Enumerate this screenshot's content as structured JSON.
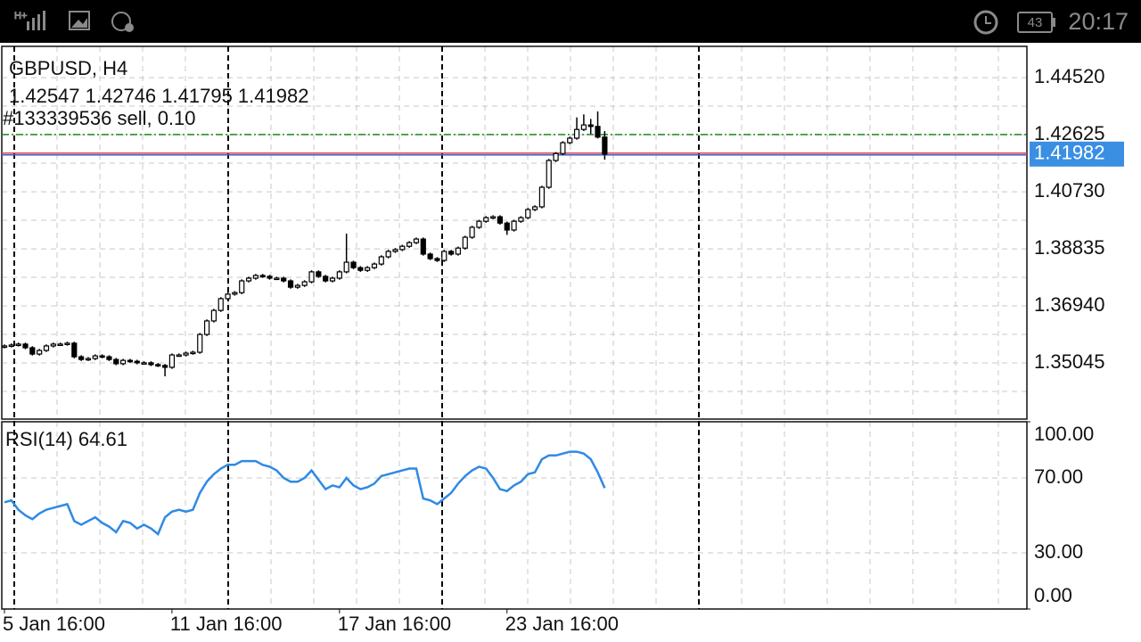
{
  "status_bar": {
    "battery": "43",
    "time": "20:17"
  },
  "chart_data": {
    "type": "candlestick",
    "symbol_label": "GBPUSD, H4",
    "ohlc_label": "1.42547 1.42746 1.41795 1.41982",
    "order_label": "#133339536 sell, 0.10",
    "categories": [
      "5 Jan 16:00",
      null,
      null,
      null,
      null,
      null,
      null,
      null,
      null,
      null,
      null,
      null,
      null,
      null,
      null,
      null,
      null,
      null,
      null,
      null,
      null,
      null,
      null,
      null,
      "11 Jan 16:00",
      null,
      null,
      null,
      null,
      null,
      null,
      null,
      null,
      null,
      null,
      null,
      null,
      null,
      null,
      null,
      null,
      null,
      null,
      null,
      null,
      null,
      null,
      null,
      "17 Jan 16:00",
      null,
      null,
      null,
      null,
      null,
      null,
      null,
      null,
      null,
      null,
      null,
      null,
      null,
      null,
      null,
      null,
      null,
      null,
      null,
      null,
      null,
      null,
      null,
      "23 Jan 16:00",
      null,
      null,
      null,
      null,
      null,
      null,
      null,
      null,
      null,
      null,
      null,
      null,
      null,
      null
    ],
    "ohlc": [
      [
        1.3558,
        1.3566,
        1.3553,
        1.3561
      ],
      [
        1.3561,
        1.3569,
        1.3556,
        1.3564
      ],
      [
        1.3564,
        1.3572,
        1.3559,
        1.3567
      ],
      [
        1.3567,
        1.3572,
        1.355,
        1.3555
      ],
      [
        1.3555,
        1.356,
        1.3529,
        1.3534
      ],
      [
        1.3534,
        1.3551,
        1.3529,
        1.3546
      ],
      [
        1.3546,
        1.3566,
        1.3541,
        1.3561
      ],
      [
        1.3561,
        1.3572,
        1.3556,
        1.3567
      ],
      [
        1.3567,
        1.3572,
        1.3562,
        1.3567
      ],
      [
        1.3567,
        1.3575,
        1.3562,
        1.357
      ],
      [
        1.357,
        1.3575,
        1.352,
        1.3525
      ],
      [
        1.3525,
        1.353,
        1.3511,
        1.3516
      ],
      [
        1.3516,
        1.3524,
        1.3511,
        1.3519
      ],
      [
        1.3519,
        1.3533,
        1.3514,
        1.3528
      ],
      [
        1.3528,
        1.3533,
        1.352,
        1.3525
      ],
      [
        1.3525,
        1.353,
        1.3511,
        1.3516
      ],
      [
        1.3516,
        1.3521,
        1.3497,
        1.3502
      ],
      [
        1.3502,
        1.3518,
        1.3497,
        1.3513
      ],
      [
        1.3513,
        1.3518,
        1.3505,
        1.351
      ],
      [
        1.351,
        1.3515,
        1.35,
        1.3505
      ],
      [
        1.3505,
        1.351,
        1.35,
        1.3505
      ],
      [
        1.3505,
        1.351,
        1.3494,
        1.3499
      ],
      [
        1.3499,
        1.3504,
        1.3491,
        1.3496
      ],
      [
        1.3496,
        1.3501,
        1.346,
        1.349
      ],
      [
        1.349,
        1.3536,
        1.3485,
        1.3531
      ],
      [
        1.3531,
        1.3536,
        1.3526,
        1.3531
      ],
      [
        1.3531,
        1.3542,
        1.3526,
        1.3537
      ],
      [
        1.3537,
        1.3545,
        1.3532,
        1.354
      ],
      [
        1.354,
        1.3604,
        1.3535,
        1.3599
      ],
      [
        1.3599,
        1.3649,
        1.3594,
        1.3644
      ],
      [
        1.3644,
        1.3684,
        1.3639,
        1.3679
      ],
      [
        1.3679,
        1.3723,
        1.3674,
        1.3718
      ],
      [
        1.3718,
        1.3738,
        1.3713,
        1.3733
      ],
      [
        1.3733,
        1.3743,
        1.3728,
        1.3738
      ],
      [
        1.3738,
        1.3782,
        1.3733,
        1.3777
      ],
      [
        1.3777,
        1.3791,
        1.3772,
        1.3786
      ],
      [
        1.3786,
        1.38,
        1.3781,
        1.3795
      ],
      [
        1.3795,
        1.38,
        1.3787,
        1.3792
      ],
      [
        1.3792,
        1.3797,
        1.3781,
        1.3786
      ],
      [
        1.3786,
        1.3791,
        1.3781,
        1.3786
      ],
      [
        1.3786,
        1.3791,
        1.3772,
        1.3777
      ],
      [
        1.3777,
        1.3782,
        1.3751,
        1.3756
      ],
      [
        1.3756,
        1.3767,
        1.3751,
        1.3762
      ],
      [
        1.3762,
        1.3779,
        1.3757,
        1.3774
      ],
      [
        1.3774,
        1.3812,
        1.3769,
        1.3807
      ],
      [
        1.3807,
        1.3812,
        1.3787,
        1.3792
      ],
      [
        1.3792,
        1.3797,
        1.3772,
        1.3777
      ],
      [
        1.3777,
        1.3791,
        1.3772,
        1.3786
      ],
      [
        1.3786,
        1.3812,
        1.3781,
        1.3807
      ],
      [
        1.3807,
        1.3934,
        1.3802,
        1.3839
      ],
      [
        1.3839,
        1.3844,
        1.3816,
        1.3821
      ],
      [
        1.3821,
        1.3826,
        1.3807,
        1.3812
      ],
      [
        1.3812,
        1.3826,
        1.3807,
        1.3821
      ],
      [
        1.3821,
        1.3838,
        1.3816,
        1.3833
      ],
      [
        1.3833,
        1.3862,
        1.3828,
        1.3857
      ],
      [
        1.3857,
        1.388,
        1.3852,
        1.3875
      ],
      [
        1.3875,
        1.3886,
        1.387,
        1.3881
      ],
      [
        1.3881,
        1.3897,
        1.3876,
        1.3892
      ],
      [
        1.3892,
        1.3909,
        1.3887,
        1.3904
      ],
      [
        1.3904,
        1.3921,
        1.3899,
        1.3916
      ],
      [
        1.3916,
        1.3921,
        1.3861,
        1.3866
      ],
      [
        1.3866,
        1.3871,
        1.3846,
        1.3851
      ],
      [
        1.3851,
        1.3856,
        1.384,
        1.3845
      ],
      [
        1.3845,
        1.388,
        1.384,
        1.3875
      ],
      [
        1.3875,
        1.388,
        1.3861,
        1.3866
      ],
      [
        1.3866,
        1.3891,
        1.3861,
        1.3886
      ],
      [
        1.3886,
        1.3927,
        1.3881,
        1.3922
      ],
      [
        1.3922,
        1.396,
        1.3917,
        1.3955
      ],
      [
        1.3955,
        1.398,
        1.395,
        1.3975
      ],
      [
        1.3975,
        1.3992,
        1.397,
        1.3987
      ],
      [
        1.3987,
        1.3995,
        1.3982,
        1.399
      ],
      [
        1.399,
        1.3995,
        1.3964,
        1.3969
      ],
      [
        1.3969,
        1.3974,
        1.393,
        1.3946
      ],
      [
        1.3946,
        1.398,
        1.3941,
        1.3975
      ],
      [
        1.3975,
        1.3992,
        1.397,
        1.3987
      ],
      [
        1.3987,
        1.4019,
        1.3982,
        1.4014
      ],
      [
        1.4014,
        1.4028,
        1.4009,
        1.4023
      ],
      [
        1.4023,
        1.4093,
        1.4018,
        1.4088
      ],
      [
        1.4088,
        1.4182,
        1.4083,
        1.4177
      ],
      [
        1.4177,
        1.4205,
        1.4172,
        1.42
      ],
      [
        1.42,
        1.4241,
        1.4195,
        1.4236
      ],
      [
        1.4236,
        1.4256,
        1.4231,
        1.4251
      ],
      [
        1.4251,
        1.432,
        1.4246,
        1.428
      ],
      [
        1.428,
        1.433,
        1.4275,
        1.4295
      ],
      [
        1.4295,
        1.4315,
        1.4265,
        1.429
      ],
      [
        1.429,
        1.434,
        1.425,
        1.42547
      ],
      [
        1.42547,
        1.42746,
        1.41795,
        1.41982
      ]
    ],
    "ylim": [
      1.3318,
      1.4556
    ],
    "yticks": [
      {
        "value": 1.4452,
        "label": "1.44520"
      },
      {
        "value": 1.42625,
        "label": "1.42625"
      },
      {
        "value": 1.4073,
        "label": "1.40730"
      },
      {
        "value": 1.38835,
        "label": "1.38835"
      },
      {
        "value": 1.3694,
        "label": "1.36940"
      },
      {
        "value": 1.35045,
        "label": "1.35045"
      }
    ],
    "order_price": 1.4263,
    "bid": {
      "value": 1.41982,
      "label": "1.41982"
    },
    "rsi": {
      "title": "RSI(14) 64.61",
      "color": "#2f8ae4",
      "values": [
        57,
        58,
        53,
        50,
        48,
        51,
        53,
        54,
        55,
        56,
        47,
        45,
        47,
        49,
        46,
        44,
        41,
        47,
        46,
        43,
        45,
        43,
        40,
        49,
        52,
        53,
        52,
        53,
        62,
        68,
        72,
        75,
        77,
        77,
        79,
        79,
        79,
        77,
        76,
        74,
        70,
        68,
        68,
        70,
        74,
        69,
        64,
        66,
        65,
        70,
        66,
        64,
        65,
        67,
        71,
        72,
        73,
        74,
        75,
        75,
        59,
        58,
        56,
        59,
        62,
        67,
        71,
        74,
        76,
        75,
        70,
        64,
        63,
        66,
        68,
        72,
        73,
        80,
        82,
        82,
        83,
        84,
        84,
        83,
        80,
        73,
        64.61
      ],
      "ylim": [
        0,
        100
      ],
      "yticks": [
        {
          "value": 100,
          "label": "100.00"
        },
        {
          "value": 70,
          "label": "70.00"
        },
        {
          "value": 30,
          "label": "30.00"
        },
        {
          "value": 0,
          "label": "0.00"
        }
      ]
    }
  }
}
